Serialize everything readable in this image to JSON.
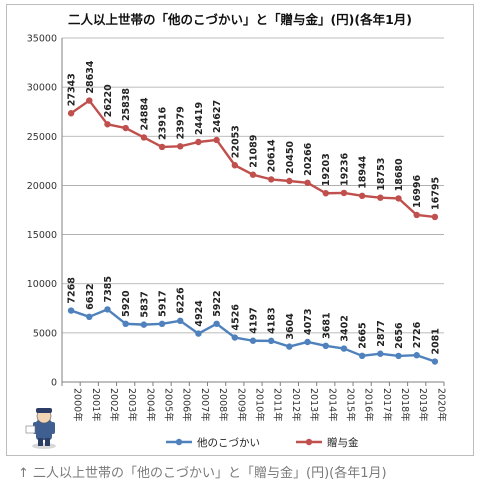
{
  "caption": "↑ 二人以上世帯の「他のこづかい」と「贈与金」(円)(各年1月)",
  "chart_data": {
    "type": "line",
    "title": "二人以上世帯の「他のこづかい」と「贈与金」(円)(各年1月)",
    "xlabel": "",
    "ylabel": "",
    "ylim": [
      0,
      35000
    ],
    "yticks": [
      0,
      5000,
      10000,
      15000,
      20000,
      25000,
      30000,
      35000
    ],
    "grid": true,
    "legend": "bottom",
    "categories": [
      "2000年",
      "2001年",
      "2002年",
      "2003年",
      "2004年",
      "2005年",
      "2006年",
      "2007年",
      "2008年",
      "2009年",
      "2010年",
      "2011年",
      "2012年",
      "2013年",
      "2014年",
      "2015年",
      "2016年",
      "2017年",
      "2018年",
      "2019年",
      "2020年"
    ],
    "series": [
      {
        "name": "他のこづかい",
        "color": "#4f81bd",
        "values": [
          7268,
          6632,
          7385,
          5920,
          5837,
          5917,
          6226,
          4924,
          5922,
          4526,
          4197,
          4183,
          3604,
          4073,
          3681,
          3402,
          2665,
          2877,
          2656,
          2726,
          2081
        ]
      },
      {
        "name": "贈与金",
        "color": "#c0504d",
        "values": [
          27343,
          28634,
          26220,
          25838,
          24884,
          23916,
          23979,
          24419,
          24627,
          22053,
          21089,
          20614,
          20450,
          20266,
          19203,
          19236,
          18944,
          18753,
          18680,
          16996,
          16795
        ]
      }
    ]
  }
}
